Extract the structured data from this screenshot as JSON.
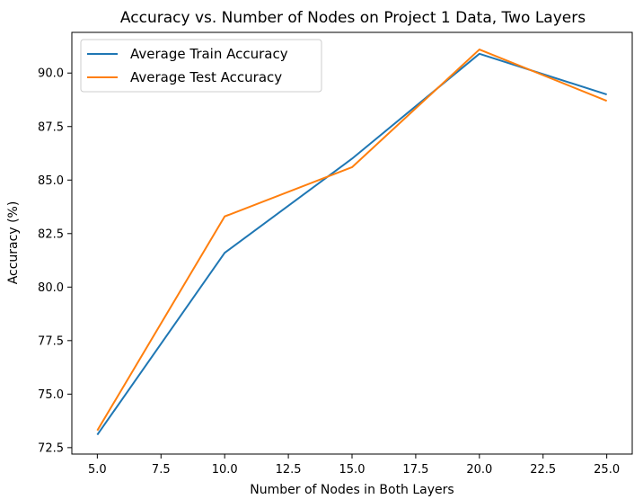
{
  "chart_data": {
    "type": "line",
    "title": "Accuracy vs. Number of Nodes on Project 1 Data, Two Layers",
    "xlabel": "Number of Nodes in Both Layers",
    "ylabel": "Accuracy (%)",
    "x": [
      5,
      10,
      15,
      20,
      25
    ],
    "xlim": [
      4,
      26
    ],
    "ylim": [
      72.2,
      91.9
    ],
    "xticks": [
      5.0,
      7.5,
      10.0,
      12.5,
      15.0,
      17.5,
      20.0,
      22.5,
      25.0
    ],
    "xtick_labels": [
      "5.0",
      "7.5",
      "10.0",
      "12.5",
      "15.0",
      "17.5",
      "20.0",
      "22.5",
      "25.0"
    ],
    "yticks": [
      72.5,
      75.0,
      77.5,
      80.0,
      82.5,
      85.0,
      87.5,
      90.0
    ],
    "ytick_labels": [
      "72.5",
      "75.0",
      "77.5",
      "80.0",
      "82.5",
      "85.0",
      "87.5",
      "90.0"
    ],
    "grid": false,
    "legend_position": "top-left",
    "series": [
      {
        "name": "Average Train Accuracy",
        "color": "#1f77b4",
        "values": [
          73.1,
          81.6,
          86.0,
          90.9,
          89.0
        ]
      },
      {
        "name": "Average Test Accuracy",
        "color": "#ff7f0e",
        "values": [
          73.3,
          83.3,
          85.6,
          91.1,
          88.7
        ]
      }
    ]
  }
}
